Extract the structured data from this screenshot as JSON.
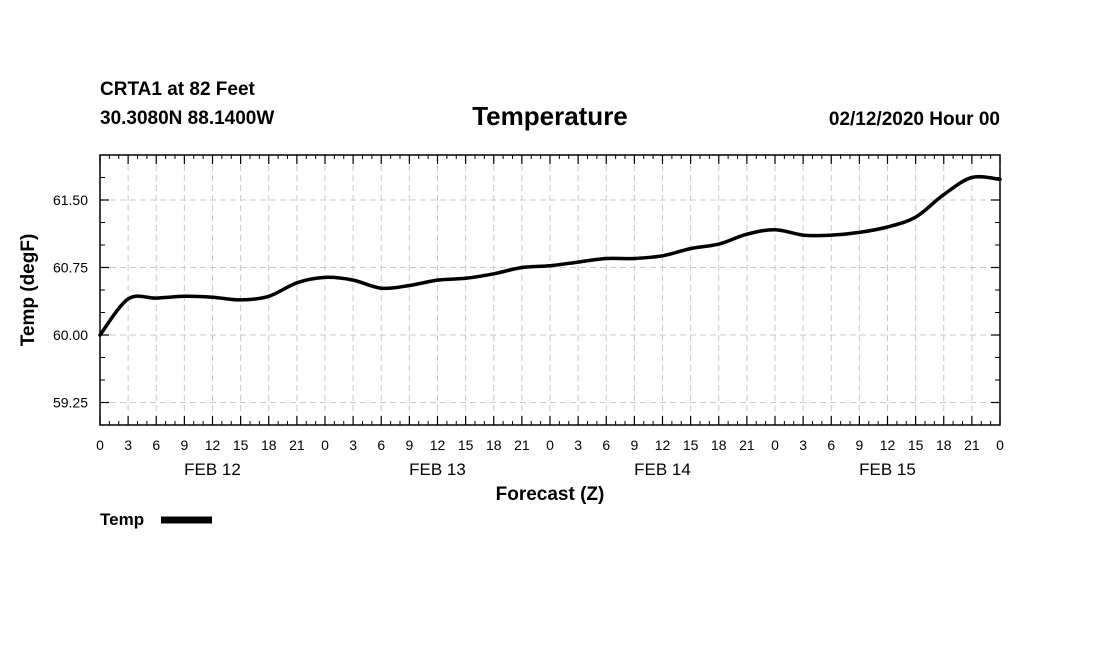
{
  "header": {
    "station": "CRTA1 at 82 Feet",
    "location": "30.3080N 88.1400W",
    "title": "Temperature",
    "run": "02/12/2020 Hour 00"
  },
  "legend": {
    "label": "Temp",
    "color": "#000000"
  },
  "chart_data": {
    "type": "line",
    "title": "Temperature",
    "xlabel": "Forecast (Z)",
    "ylabel": "Temp (degF)",
    "x_unit": "forecast hour from 02/12/2020 00Z",
    "xlim": [
      0,
      96
    ],
    "ylim": [
      59.0,
      62.0
    ],
    "y_ticks": [
      "61.50",
      "60.75",
      "60.00",
      "59.25"
    ],
    "y_tick_values": [
      61.5,
      60.75,
      60.0,
      59.25
    ],
    "x_tick_labels": [
      "0",
      "3",
      "6",
      "9",
      "12",
      "15",
      "18",
      "21",
      "0",
      "3",
      "6",
      "9",
      "12",
      "15",
      "18",
      "21",
      "0",
      "3",
      "6",
      "9",
      "12",
      "15",
      "18",
      "21",
      "0",
      "3",
      "6",
      "9",
      "12",
      "15",
      "18",
      "21",
      "0"
    ],
    "date_labels": [
      "FEB 12",
      "FEB 13",
      "FEB 14",
      "FEB 15"
    ],
    "grid": true,
    "legend_position": "bottom-left",
    "series": [
      {
        "name": "Temp",
        "color": "#000000",
        "x": [
          0,
          3,
          6,
          9,
          12,
          15,
          18,
          21,
          24,
          27,
          30,
          33,
          36,
          39,
          42,
          45,
          48,
          51,
          54,
          57,
          60,
          63,
          66,
          69,
          72,
          75,
          78,
          81,
          84,
          87,
          90,
          93,
          96
        ],
        "values": [
          60.0,
          60.4,
          60.41,
          60.43,
          60.42,
          60.39,
          60.43,
          60.58,
          60.64,
          60.61,
          60.52,
          60.55,
          60.61,
          60.63,
          60.68,
          60.75,
          60.77,
          60.81,
          60.85,
          60.85,
          60.88,
          60.96,
          61.01,
          61.12,
          61.17,
          61.11,
          61.11,
          61.14,
          61.2,
          61.31,
          61.56,
          61.75,
          61.73
        ]
      }
    ]
  }
}
